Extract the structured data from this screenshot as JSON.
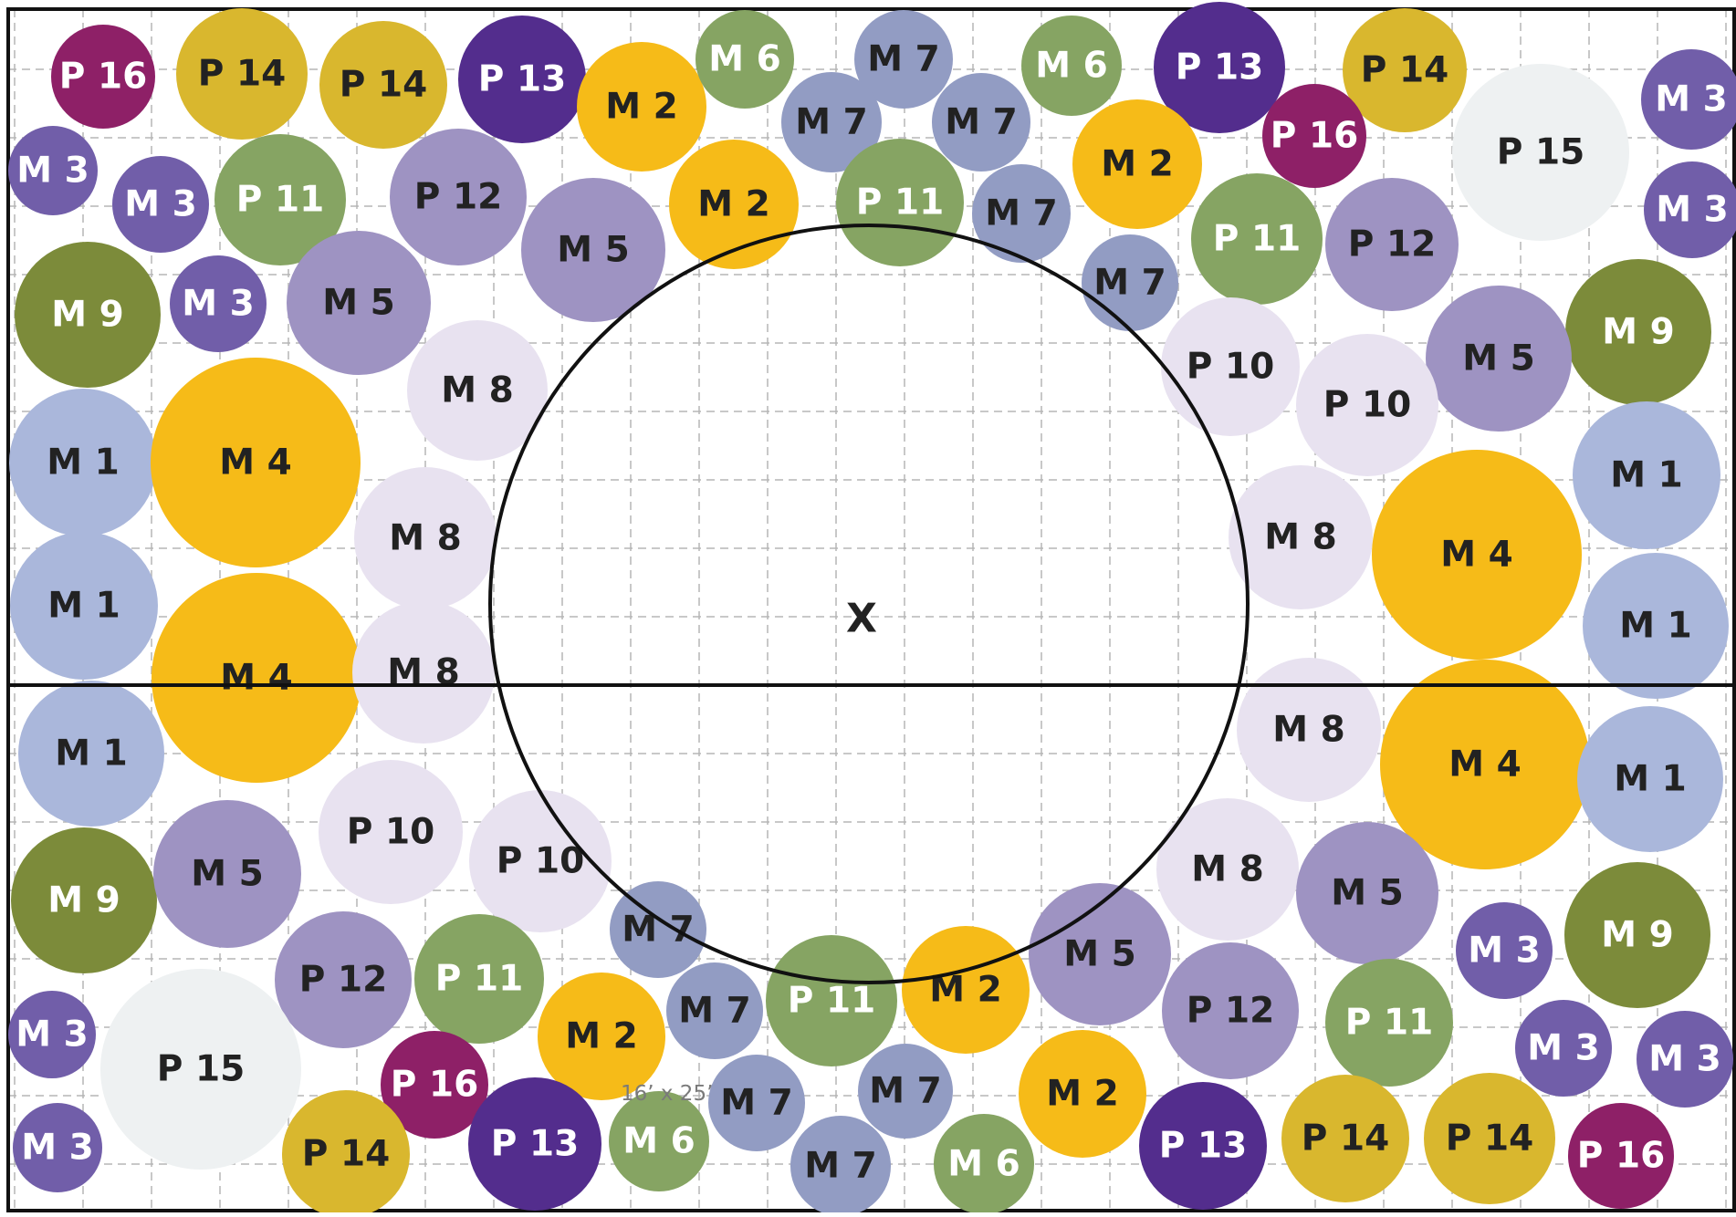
{
  "plan": {
    "dimensions_note": "16’ x 25’",
    "center_label": "X"
  },
  "colors": {
    "M1": "#aab7db",
    "M2": "#f6bb18",
    "M3": "#715ea9",
    "M4": "#f6bb18",
    "M5": "#9e93c2",
    "M6": "#86a463",
    "M7": "#929cc3",
    "M8": "#e8e2f0",
    "M9": "#7c8b3a",
    "P10": "#e8e2f0",
    "P11": "#86a463",
    "P12": "#9e93c2",
    "P13": "#532d8d",
    "P14": "#d9b72e",
    "P15": "#eef1f2",
    "P16": "#8e2067",
    "grid": "#b5b5b5",
    "outline": "#111111"
  },
  "legend_codes": {
    "M1": "M 1",
    "M2": "M 2",
    "M3": "M 3",
    "M4": "M 4",
    "M5": "M 5",
    "M6": "M 6",
    "M7": "M 7",
    "M8": "M 8",
    "M9": "M 9",
    "P10": "P 10",
    "P11": "P 11",
    "P12": "P 12",
    "P13": "P 13",
    "P14": "P 14",
    "P15": "P 15",
    "P16": "P 16"
  }
}
